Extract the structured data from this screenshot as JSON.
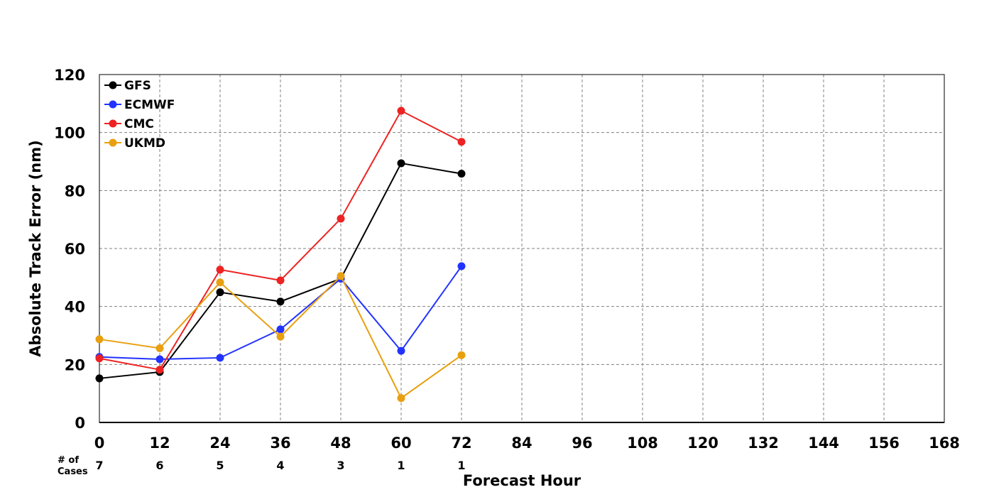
{
  "chart_data": {
    "type": "line",
    "xlabel": "Forecast Hour",
    "ylabel": "Absolute Track Error (nm)",
    "xlim": [
      0,
      168
    ],
    "ylim": [
      0,
      120
    ],
    "xticks": [
      0,
      12,
      24,
      36,
      48,
      60,
      72,
      84,
      96,
      108,
      120,
      132,
      144,
      156,
      168
    ],
    "yticks": [
      0,
      20,
      40,
      60,
      80,
      100,
      120
    ],
    "grid": true,
    "legend_position": "top-left",
    "x": [
      0,
      12,
      24,
      36,
      48,
      60,
      72
    ],
    "series": [
      {
        "name": "GFS",
        "color": "#000000",
        "values": [
          15.2,
          17.4,
          44.9,
          41.7,
          49.6,
          89.4,
          85.8
        ]
      },
      {
        "name": "ECMWF",
        "color": "#2233ff",
        "values": [
          22.6,
          21.8,
          22.3,
          32.1,
          49.6,
          24.7,
          53.9
        ]
      },
      {
        "name": "CMC",
        "color": "#ee2222",
        "values": [
          22.1,
          18.2,
          52.7,
          49.0,
          70.3,
          107.5,
          96.8
        ]
      },
      {
        "name": "UKMD",
        "color": "#e8a010",
        "values": [
          28.7,
          25.6,
          48.3,
          29.6,
          50.5,
          8.4,
          23.2
        ]
      }
    ],
    "cases": {
      "label_line1": "# of",
      "label_line2": "Cases",
      "values": [
        "7",
        "6",
        "5",
        "4",
        "3",
        "1",
        "1"
      ]
    }
  }
}
